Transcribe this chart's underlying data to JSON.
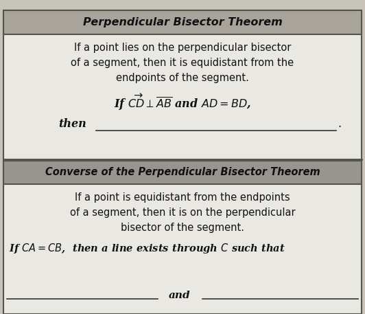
{
  "bg_color": "#c8c4bc",
  "box_bg": "#eae8e2",
  "header1_bg": "#a8a49c",
  "header2_bg": "#989490",
  "border_color": "#555550",
  "header_text_color": "#111111",
  "body_text_color": "#111111",
  "header1_text": "Perpendicular Bisector Theorem",
  "header2_text": "Converse of the Perpendicular Bisector Theorem",
  "body1_line1": "If a point lies on the perpendicular bisector",
  "body1_line2": "of a segment, then it is equidistant from the",
  "body1_line3": "endpoints of the segment.",
  "body1_math": "If $\\overrightarrow{CD} \\perp \\overline{AB}$ and $AD = BD$,",
  "body2_line1": "If a point is equidistant from the endpoints",
  "body2_line2": "of a segment, then it is on the perpendicular",
  "body2_line3": "bisector of the segment.",
  "body2_math": "If $CA = CB$,  then a line exists through $C$ such that",
  "body2_and": "and",
  "figsize": [
    5.32,
    4.57
  ],
  "dpi": 100
}
